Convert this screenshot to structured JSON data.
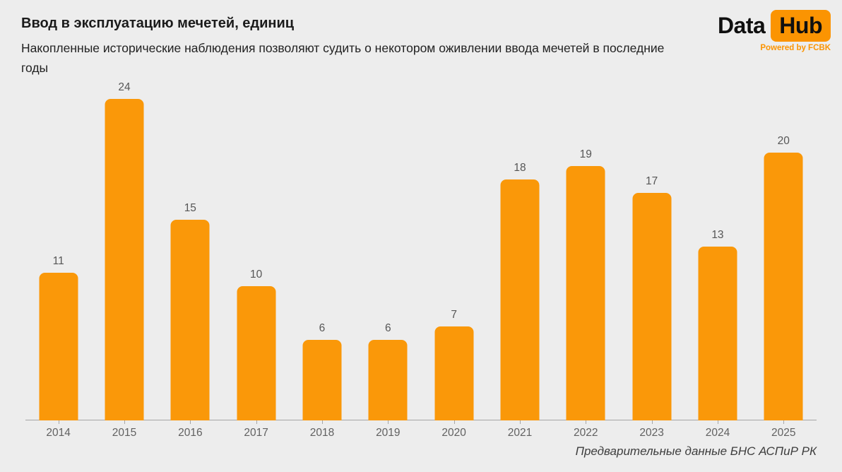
{
  "header": {
    "title": "Ввод в эксплуатацию мечетей, единиц",
    "subtitle": "Накопленные исторические наблюдения позволяют судить о некотором оживлении ввода мечетей в последние годы"
  },
  "logo": {
    "word1": "Data",
    "word2": "Hub",
    "powered_by": "Powered by FCBK"
  },
  "footer": {
    "source": "Предварительные данные БНС АСПиР РК"
  },
  "chart_data": {
    "type": "bar",
    "title": "Ввод в эксплуатацию мечетей, единиц",
    "categories": [
      "2014",
      "2015",
      "2016",
      "2017",
      "2018",
      "2019",
      "2020",
      "2021",
      "2022",
      "2023",
      "2024",
      "2025"
    ],
    "values": [
      11,
      24,
      15,
      10,
      6,
      6,
      7,
      18,
      19,
      17,
      13,
      20
    ],
    "xlabel": "",
    "ylabel": "единиц",
    "ylim": [
      0,
      24
    ],
    "grid": false,
    "legend": false,
    "data_labels": true
  },
  "colors": {
    "background": "#EDEDED",
    "bar": "#FA9809",
    "badge": "#FB9402",
    "axis": "#A6A6A6"
  }
}
